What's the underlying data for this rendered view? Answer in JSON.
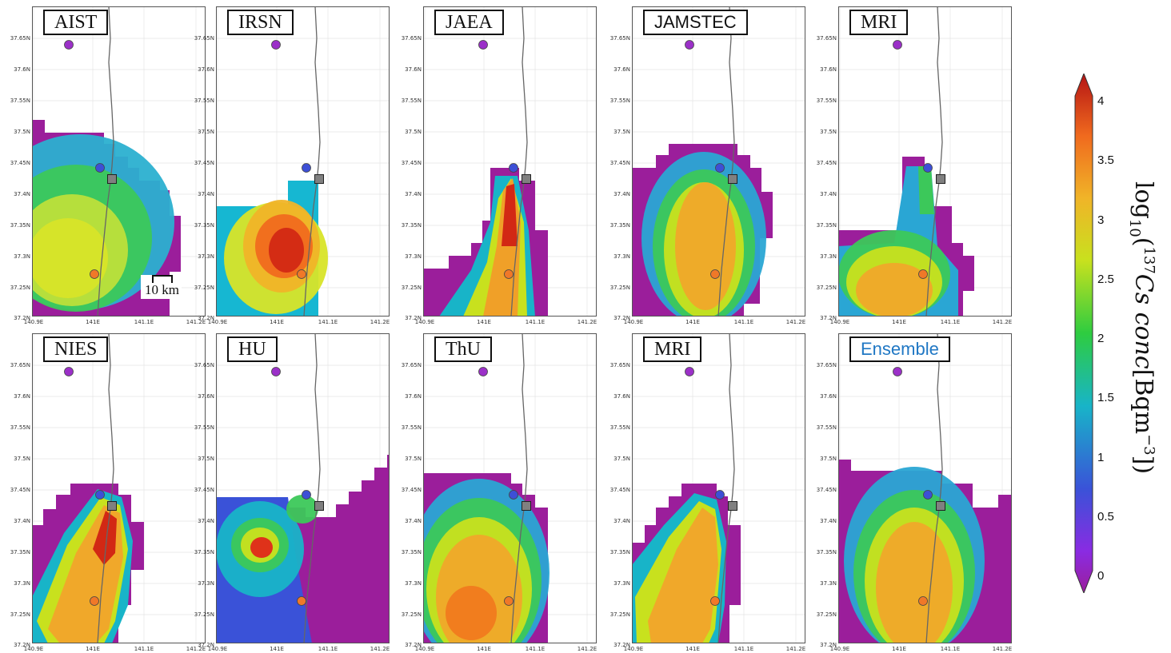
{
  "panels": [
    {
      "label": "AIST",
      "font": "serif"
    },
    {
      "label": "IRSN",
      "font": "serif"
    },
    {
      "label": "JAEA",
      "font": "serif"
    },
    {
      "label": "JAMSTEC",
      "font": "sans"
    },
    {
      "label": "MRI",
      "font": "serif"
    },
    {
      "label": "NIES",
      "font": "serif"
    },
    {
      "label": "HU",
      "font": "serif"
    },
    {
      "label": "ThU",
      "font": "serif"
    },
    {
      "label": "MRI",
      "font": "serif"
    },
    {
      "label": "Ensemble",
      "font": "sans",
      "color": "#1f77c4"
    }
  ],
  "axes": {
    "y_ticks": [
      "37.65N",
      "37.6N",
      "37.55N",
      "37.5N",
      "37.45N",
      "37.4N",
      "37.35N",
      "37.3N",
      "37.25N",
      "37.2N"
    ],
    "x_ticks": [
      "140.9E",
      "141E",
      "141.1E",
      "141.2E"
    ]
  },
  "scale_bar": {
    "label": "10 km"
  },
  "colorbar": {
    "ticks": [
      "4",
      "3.5",
      "3",
      "2.5",
      "2",
      "1.5",
      "1",
      "0.5",
      "0"
    ],
    "title_prefix": "log",
    "title_sub": "10",
    "title_sup": "137",
    "title_italic": "Cs conc",
    "title_unit": "[Bqm",
    "title_unit_sup": "−3",
    "title_close": "])",
    "title_open": "(",
    "colors": [
      "#9b1e9b",
      "#8a2be2",
      "#3a52d8",
      "#18b4c8",
      "#2ecc40",
      "#c8e11e",
      "#f0b428",
      "#f06a1e",
      "#c81414"
    ]
  },
  "markers": {
    "plant_color": "#808080",
    "north_point_color": "#9b30c8",
    "blue_point_color": "#3d4fd6",
    "orange_point_color": "#f07828"
  }
}
